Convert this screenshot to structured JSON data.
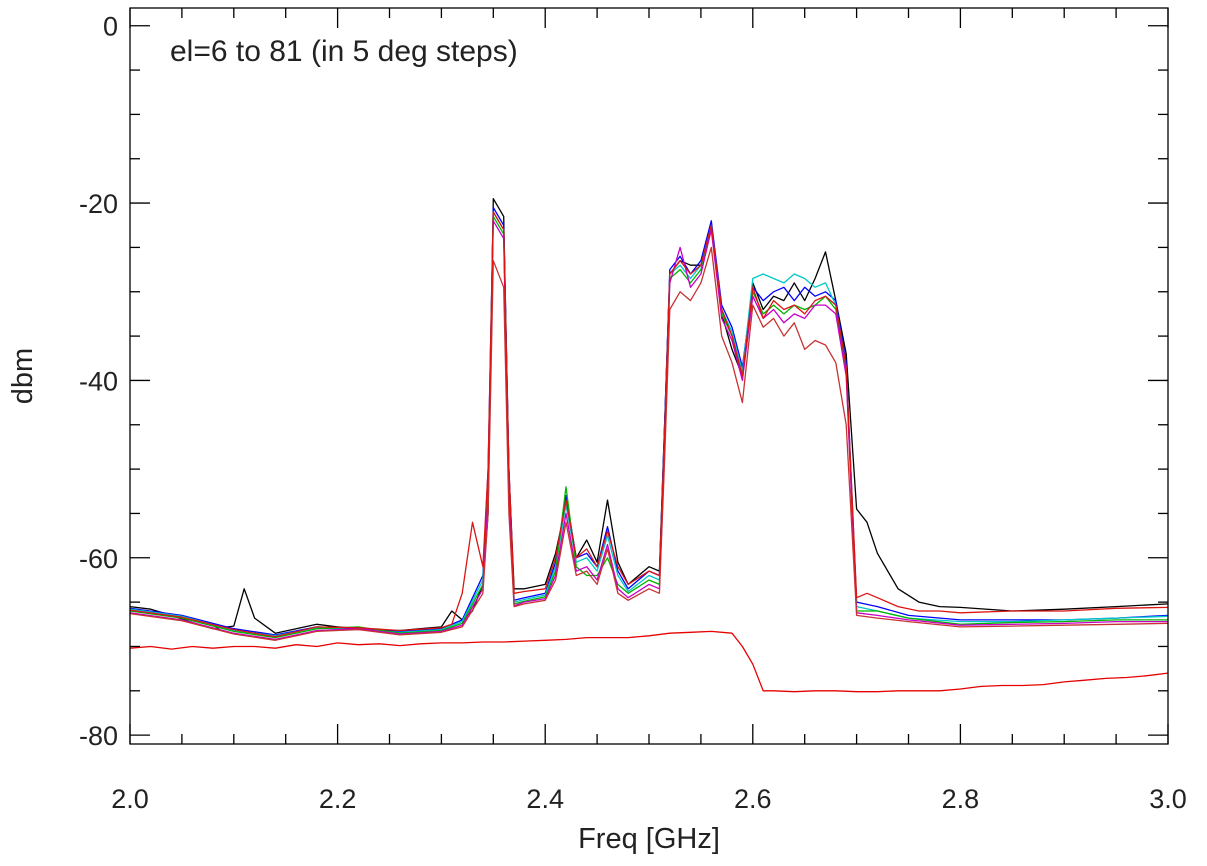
{
  "chart_data": {
    "type": "line",
    "title": "",
    "annotation": "el=6 to 81 (in 5 deg steps)",
    "xlabel": "Freq [GHz]",
    "ylabel": "dbm",
    "xlim": [
      2.0,
      3.0
    ],
    "ylim": [
      -81,
      2
    ],
    "xticks": [
      2.0,
      2.2,
      2.4,
      2.6,
      2.8,
      3.0
    ],
    "xtick_labels": [
      "2.0",
      "2.2",
      "2.4",
      "2.6",
      "2.8",
      "3.0"
    ],
    "yticks": [
      0,
      -20,
      -40,
      -60,
      -80
    ],
    "ytick_labels": [
      "0",
      "-20",
      "-40",
      "-60",
      "-80"
    ],
    "grid": false,
    "legend": "none",
    "series": [
      {
        "color": "#000000",
        "x": [
          2.0,
          2.02,
          2.04,
          2.06,
          2.08,
          2.1,
          2.11,
          2.12,
          2.14,
          2.16,
          2.18,
          2.2,
          2.22,
          2.24,
          2.26,
          2.28,
          2.3,
          2.31,
          2.32,
          2.33,
          2.34,
          2.345,
          2.35,
          2.36,
          2.365,
          2.37,
          2.38,
          2.4,
          2.41,
          2.42,
          2.43,
          2.44,
          2.45,
          2.46,
          2.47,
          2.48,
          2.5,
          2.51,
          2.515,
          2.52,
          2.53,
          2.54,
          2.55,
          2.56,
          2.57,
          2.58,
          2.59,
          2.6,
          2.61,
          2.62,
          2.63,
          2.64,
          2.65,
          2.66,
          2.67,
          2.68,
          2.69,
          2.7,
          2.71,
          2.72,
          2.74,
          2.76,
          2.78,
          2.8,
          2.85,
          2.9,
          2.95,
          3.0
        ],
        "y": [
          -65.5,
          -65.8,
          -66.5,
          -67.3,
          -68.0,
          -67.7,
          -63.5,
          -66.8,
          -68.5,
          -68.0,
          -67.5,
          -67.8,
          -68.0,
          -68.2,
          -68.2,
          -68.0,
          -67.8,
          -66.0,
          -67.0,
          -66.0,
          -63.0,
          -55.0,
          -19.5,
          -21.5,
          -50.0,
          -63.5,
          -63.5,
          -63.0,
          -59.5,
          -54.0,
          -60.0,
          -58.0,
          -60.5,
          -53.5,
          -60.5,
          -63.0,
          -61.0,
          -61.5,
          -45.0,
          -28.0,
          -26.5,
          -27.0,
          -27.0,
          -22.5,
          -32.5,
          -36.5,
          -39.5,
          -29.0,
          -32.0,
          -30.5,
          -31.0,
          -29.0,
          -31.0,
          -28.5,
          -25.5,
          -31.0,
          -37.0,
          -54.5,
          -56.0,
          -59.5,
          -63.5,
          -65.0,
          -65.5,
          -65.6,
          -66.0,
          -65.8,
          -65.5,
          -65.2
        ]
      },
      {
        "color": "#0000ff",
        "x": [
          2.0,
          2.05,
          2.1,
          2.14,
          2.18,
          2.22,
          2.26,
          2.3,
          2.32,
          2.34,
          2.345,
          2.35,
          2.36,
          2.365,
          2.37,
          2.38,
          2.4,
          2.41,
          2.42,
          2.43,
          2.44,
          2.45,
          2.46,
          2.47,
          2.48,
          2.5,
          2.51,
          2.515,
          2.52,
          2.53,
          2.54,
          2.55,
          2.56,
          2.57,
          2.58,
          2.59,
          2.6,
          2.61,
          2.62,
          2.63,
          2.64,
          2.65,
          2.66,
          2.67,
          2.68,
          2.69,
          2.7,
          2.72,
          2.75,
          2.8,
          2.85,
          2.9,
          2.95,
          3.0
        ],
        "y": [
          -65.7,
          -66.5,
          -68.0,
          -68.7,
          -67.8,
          -68.0,
          -68.3,
          -68.0,
          -67.0,
          -62.0,
          -50.0,
          -20.5,
          -22.5,
          -50.0,
          -64.8,
          -64.5,
          -64.0,
          -60.5,
          -53.0,
          -60.0,
          -59.5,
          -61.0,
          -56.5,
          -61.5,
          -63.5,
          -61.5,
          -62.0,
          -45.0,
          -27.5,
          -26.0,
          -28.0,
          -26.5,
          -22.0,
          -31.5,
          -34.0,
          -38.5,
          -29.5,
          -31.0,
          -30.0,
          -29.5,
          -31.0,
          -29.5,
          -30.5,
          -30.0,
          -31.0,
          -38.0,
          -65.0,
          -65.5,
          -66.5,
          -67.0,
          -67.0,
          -67.0,
          -66.8,
          -66.5
        ]
      },
      {
        "color": "#00c8c8",
        "x": [
          2.0,
          2.05,
          2.1,
          2.14,
          2.18,
          2.22,
          2.26,
          2.3,
          2.32,
          2.34,
          2.345,
          2.35,
          2.36,
          2.365,
          2.37,
          2.38,
          2.4,
          2.41,
          2.42,
          2.43,
          2.44,
          2.45,
          2.46,
          2.47,
          2.48,
          2.5,
          2.51,
          2.515,
          2.52,
          2.53,
          2.54,
          2.55,
          2.56,
          2.57,
          2.58,
          2.59,
          2.6,
          2.61,
          2.62,
          2.63,
          2.64,
          2.65,
          2.66,
          2.67,
          2.68,
          2.69,
          2.7,
          2.72,
          2.75,
          2.8,
          2.85,
          2.9,
          2.95,
          3.0
        ],
        "y": [
          -65.8,
          -66.6,
          -68.2,
          -68.8,
          -67.9,
          -68.1,
          -68.4,
          -68.1,
          -67.2,
          -62.5,
          -51.0,
          -21.0,
          -23.0,
          -51.0,
          -65.0,
          -64.7,
          -64.2,
          -61.0,
          -54.0,
          -60.5,
          -60.0,
          -61.5,
          -57.5,
          -62.0,
          -63.8,
          -62.0,
          -62.5,
          -46.0,
          -28.0,
          -27.0,
          -28.5,
          -27.0,
          -22.5,
          -32.0,
          -34.5,
          -39.0,
          -28.5,
          -28.0,
          -28.5,
          -29.0,
          -28.0,
          -28.5,
          -29.5,
          -29.0,
          -31.5,
          -38.5,
          -65.5,
          -66.0,
          -66.8,
          -67.2,
          -67.2,
          -67.0,
          -66.8,
          -66.6
        ]
      },
      {
        "color": "#00b400",
        "x": [
          2.0,
          2.05,
          2.1,
          2.14,
          2.18,
          2.22,
          2.26,
          2.3,
          2.32,
          2.34,
          2.345,
          2.35,
          2.36,
          2.365,
          2.37,
          2.38,
          2.4,
          2.41,
          2.42,
          2.43,
          2.44,
          2.45,
          2.46,
          2.47,
          2.48,
          2.5,
          2.51,
          2.515,
          2.52,
          2.53,
          2.54,
          2.55,
          2.56,
          2.57,
          2.58,
          2.59,
          2.6,
          2.61,
          2.62,
          2.63,
          2.64,
          2.65,
          2.66,
          2.67,
          2.68,
          2.69,
          2.7,
          2.72,
          2.75,
          2.8,
          2.85,
          2.9,
          2.95,
          3.0
        ],
        "y": [
          -66.0,
          -66.8,
          -68.3,
          -69.0,
          -68.0,
          -67.8,
          -68.5,
          -68.2,
          -67.4,
          -63.0,
          -52.0,
          -21.5,
          -23.5,
          -52.0,
          -65.2,
          -64.9,
          -64.4,
          -61.5,
          -52.0,
          -61.0,
          -62.0,
          -62.0,
          -60.0,
          -63.0,
          -64.0,
          -62.5,
          -63.0,
          -47.0,
          -28.5,
          -27.5,
          -29.0,
          -27.5,
          -23.0,
          -32.5,
          -35.0,
          -39.5,
          -30.0,
          -32.5,
          -31.5,
          -32.5,
          -31.5,
          -32.0,
          -31.5,
          -30.5,
          -32.0,
          -39.0,
          -66.0,
          -66.0,
          -66.8,
          -67.5,
          -67.3,
          -67.2,
          -67.0,
          -67.0
        ]
      },
      {
        "color": "#c800c8",
        "x": [
          2.0,
          2.05,
          2.1,
          2.14,
          2.18,
          2.22,
          2.26,
          2.3,
          2.32,
          2.34,
          2.345,
          2.35,
          2.36,
          2.365,
          2.37,
          2.38,
          2.4,
          2.41,
          2.42,
          2.43,
          2.44,
          2.45,
          2.46,
          2.47,
          2.48,
          2.5,
          2.51,
          2.515,
          2.52,
          2.53,
          2.54,
          2.55,
          2.56,
          2.57,
          2.58,
          2.59,
          2.6,
          2.61,
          2.62,
          2.63,
          2.64,
          2.65,
          2.66,
          2.67,
          2.68,
          2.69,
          2.7,
          2.72,
          2.75,
          2.8,
          2.85,
          2.9,
          2.95,
          3.0
        ],
        "y": [
          -66.2,
          -67.0,
          -68.5,
          -69.2,
          -68.2,
          -68.0,
          -68.6,
          -68.3,
          -67.6,
          -63.5,
          -53.0,
          -22.0,
          -24.0,
          -53.0,
          -65.4,
          -65.0,
          -64.6,
          -62.0,
          -55.0,
          -61.5,
          -61.0,
          -62.5,
          -58.5,
          -63.5,
          -64.5,
          -63.0,
          -63.5,
          -48.0,
          -29.0,
          -25.0,
          -29.5,
          -28.0,
          -23.0,
          -33.0,
          -35.5,
          -40.0,
          -30.5,
          -33.0,
          -32.0,
          -33.5,
          -32.5,
          -33.0,
          -31.5,
          -31.5,
          -32.5,
          -39.5,
          -66.2,
          -66.5,
          -67.0,
          -67.6,
          -67.5,
          -67.4,
          -67.2,
          -67.2
        ]
      },
      {
        "color": "#c83232",
        "x": [
          2.0,
          2.05,
          2.1,
          2.14,
          2.18,
          2.22,
          2.26,
          2.3,
          2.32,
          2.34,
          2.345,
          2.35,
          2.36,
          2.365,
          2.37,
          2.38,
          2.4,
          2.41,
          2.42,
          2.43,
          2.44,
          2.45,
          2.46,
          2.47,
          2.48,
          2.5,
          2.51,
          2.515,
          2.52,
          2.53,
          2.54,
          2.55,
          2.56,
          2.57,
          2.58,
          2.59,
          2.6,
          2.61,
          2.62,
          2.63,
          2.64,
          2.65,
          2.66,
          2.67,
          2.68,
          2.69,
          2.7,
          2.72,
          2.75,
          2.8,
          2.85,
          2.9,
          2.95,
          3.0
        ],
        "y": [
          -66.3,
          -67.1,
          -68.6,
          -69.3,
          -68.3,
          -68.1,
          -68.7,
          -68.4,
          -67.8,
          -64.0,
          -55.0,
          -26.5,
          -29.5,
          -55.0,
          -65.5,
          -65.2,
          -64.8,
          -62.5,
          -56.0,
          -62.0,
          -61.5,
          -63.0,
          -59.0,
          -64.0,
          -64.8,
          -63.5,
          -64.0,
          -49.0,
          -32.0,
          -30.0,
          -31.0,
          -29.0,
          -25.0,
          -35.0,
          -38.0,
          -42.5,
          -31.5,
          -34.0,
          -33.0,
          -35.0,
          -33.5,
          -36.5,
          -35.5,
          -36.0,
          -38.0,
          -45.0,
          -66.5,
          -66.8,
          -67.2,
          -67.8,
          -67.7,
          -67.6,
          -67.5,
          -67.4
        ]
      },
      {
        "color": "#dc1414",
        "x": [
          2.0,
          2.05,
          2.1,
          2.14,
          2.18,
          2.22,
          2.26,
          2.3,
          2.31,
          2.32,
          2.33,
          2.34,
          2.345,
          2.35,
          2.36,
          2.365,
          2.37,
          2.38,
          2.4,
          2.41,
          2.42,
          2.43,
          2.44,
          2.45,
          2.46,
          2.47,
          2.48,
          2.5,
          2.51,
          2.515,
          2.52,
          2.53,
          2.54,
          2.55,
          2.56,
          2.57,
          2.58,
          2.59,
          2.6,
          2.61,
          2.62,
          2.63,
          2.64,
          2.65,
          2.66,
          2.67,
          2.68,
          2.69,
          2.7,
          2.71,
          2.72,
          2.74,
          2.76,
          2.78,
          2.8,
          2.85,
          2.9,
          2.95,
          3.0
        ],
        "y": [
          -65.9,
          -66.7,
          -68.1,
          -68.9,
          -67.8,
          -67.9,
          -68.2,
          -67.9,
          -67.5,
          -64.0,
          -56.0,
          -61.0,
          -50.0,
          -21.0,
          -23.0,
          -50.0,
          -64.0,
          -63.8,
          -63.5,
          -60.0,
          -53.5,
          -60.0,
          -59.0,
          -61.0,
          -57.0,
          -61.0,
          -63.0,
          -61.5,
          -62.0,
          -46.0,
          -28.0,
          -26.5,
          -28.0,
          -27.0,
          -22.5,
          -32.0,
          -35.0,
          -39.5,
          -29.5,
          -33.0,
          -31.0,
          -32.0,
          -31.5,
          -32.5,
          -31.0,
          -30.5,
          -31.5,
          -38.5,
          -64.5,
          -64.0,
          -64.5,
          -65.5,
          -66.0,
          -66.0,
          -66.2,
          -66.0,
          -66.0,
          -65.7,
          -65.6
        ]
      },
      {
        "color": "#e60000",
        "x": [
          2.0,
          2.02,
          2.04,
          2.06,
          2.08,
          2.1,
          2.12,
          2.14,
          2.16,
          2.18,
          2.2,
          2.22,
          2.24,
          2.26,
          2.28,
          2.3,
          2.32,
          2.34,
          2.36,
          2.38,
          2.4,
          2.42,
          2.44,
          2.46,
          2.48,
          2.5,
          2.52,
          2.54,
          2.56,
          2.58,
          2.59,
          2.6,
          2.61,
          2.62,
          2.64,
          2.66,
          2.68,
          2.7,
          2.72,
          2.74,
          2.76,
          2.78,
          2.8,
          2.82,
          2.84,
          2.86,
          2.88,
          2.9,
          2.92,
          2.94,
          2.96,
          2.98,
          3.0
        ],
        "y": [
          -70.2,
          -70.0,
          -70.3,
          -70.0,
          -70.2,
          -70.0,
          -70.0,
          -70.2,
          -69.8,
          -70.0,
          -69.6,
          -69.8,
          -69.7,
          -69.9,
          -69.7,
          -69.6,
          -69.6,
          -69.5,
          -69.5,
          -69.4,
          -69.3,
          -69.2,
          -69.0,
          -69.0,
          -69.0,
          -68.8,
          -68.5,
          -68.4,
          -68.3,
          -68.5,
          -70.0,
          -72.0,
          -75.0,
          -75.0,
          -75.1,
          -75.0,
          -75.0,
          -75.1,
          -75.1,
          -75.0,
          -75.0,
          -75.0,
          -74.8,
          -74.5,
          -74.4,
          -74.4,
          -74.3,
          -74.0,
          -73.8,
          -73.6,
          -73.5,
          -73.3,
          -73.0
        ]
      }
    ]
  }
}
